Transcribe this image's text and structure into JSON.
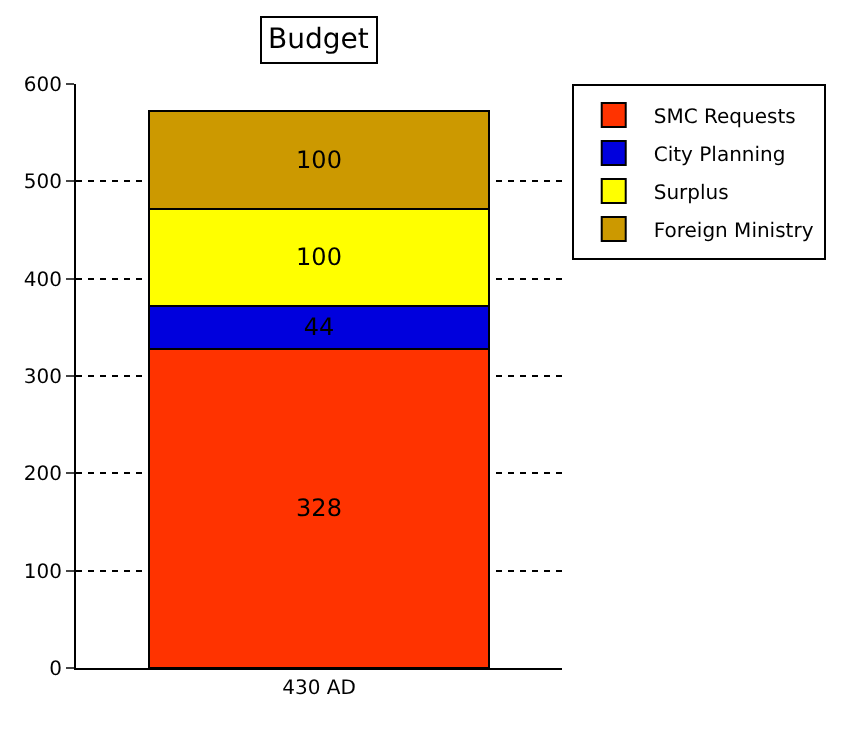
{
  "chart_data": {
    "type": "bar",
    "title": "Budget",
    "categories": [
      "430 AD"
    ],
    "stacked": true,
    "series": [
      {
        "name": "SMC Requests",
        "color": "#ff3300",
        "values": [
          328
        ]
      },
      {
        "name": "City Planning",
        "color": "#0000dd",
        "values": [
          44
        ]
      },
      {
        "name": "Surplus",
        "color": "#ffff00",
        "values": [
          100
        ]
      },
      {
        "name": "Foreign Ministry",
        "color": "#cc9900",
        "values": [
          100
        ]
      }
    ],
    "ylim": [
      0,
      600
    ],
    "yticks": [
      0,
      100,
      200,
      300,
      400,
      500,
      600
    ],
    "grid": "y",
    "legend": "top right",
    "data_labels": true
  }
}
